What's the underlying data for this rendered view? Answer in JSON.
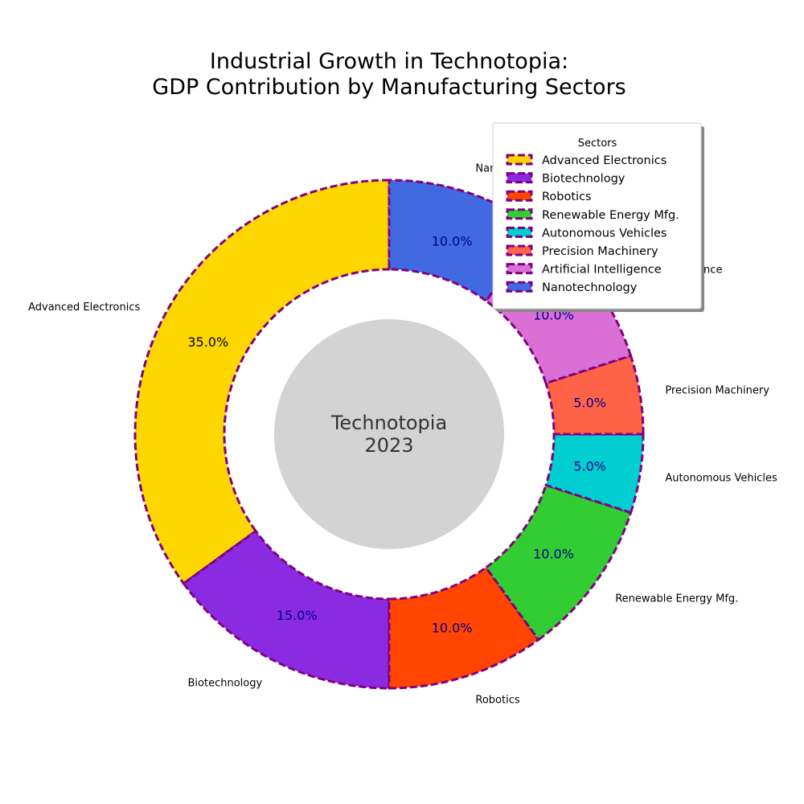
{
  "chart_data": {
    "type": "pie",
    "variant": "donut",
    "title_lines": [
      "Industrial Growth in Technotopia:",
      "GDP Contribution by Manufacturing Sectors"
    ],
    "center_lines": [
      "Technotopia",
      "2023"
    ],
    "legend": {
      "title": "Sectors",
      "placement": "top-right"
    },
    "slices": [
      {
        "label": "Advanced Electronics",
        "value": 35.0,
        "pct_label": "35.0%",
        "color": "#FFD700"
      },
      {
        "label": "Biotechnology",
        "value": 15.0,
        "pct_label": "15.0%",
        "color": "#8A2BE2"
      },
      {
        "label": "Robotics",
        "value": 10.0,
        "pct_label": "10.0%",
        "color": "#FF4500"
      },
      {
        "label": "Renewable Energy Mfg.",
        "value": 10.0,
        "pct_label": "10.0%",
        "color": "#32CD32"
      },
      {
        "label": "Autonomous Vehicles",
        "value": 5.0,
        "pct_label": "5.0%",
        "color": "#00CED1"
      },
      {
        "label": "Precision Machinery",
        "value": 5.0,
        "pct_label": "5.0%",
        "color": "#FF6347"
      },
      {
        "label": "Artificial Intelligence",
        "value": 10.0,
        "pct_label": "10.0%",
        "color": "#DA70D6"
      },
      {
        "label": "Nanotechnology",
        "value": 10.0,
        "pct_label": "10.0%",
        "color": "#4169E1"
      }
    ],
    "edge_color": "#800080",
    "pct_label_color": "#00008B",
    "center_fill": "#D3D3D3"
  }
}
